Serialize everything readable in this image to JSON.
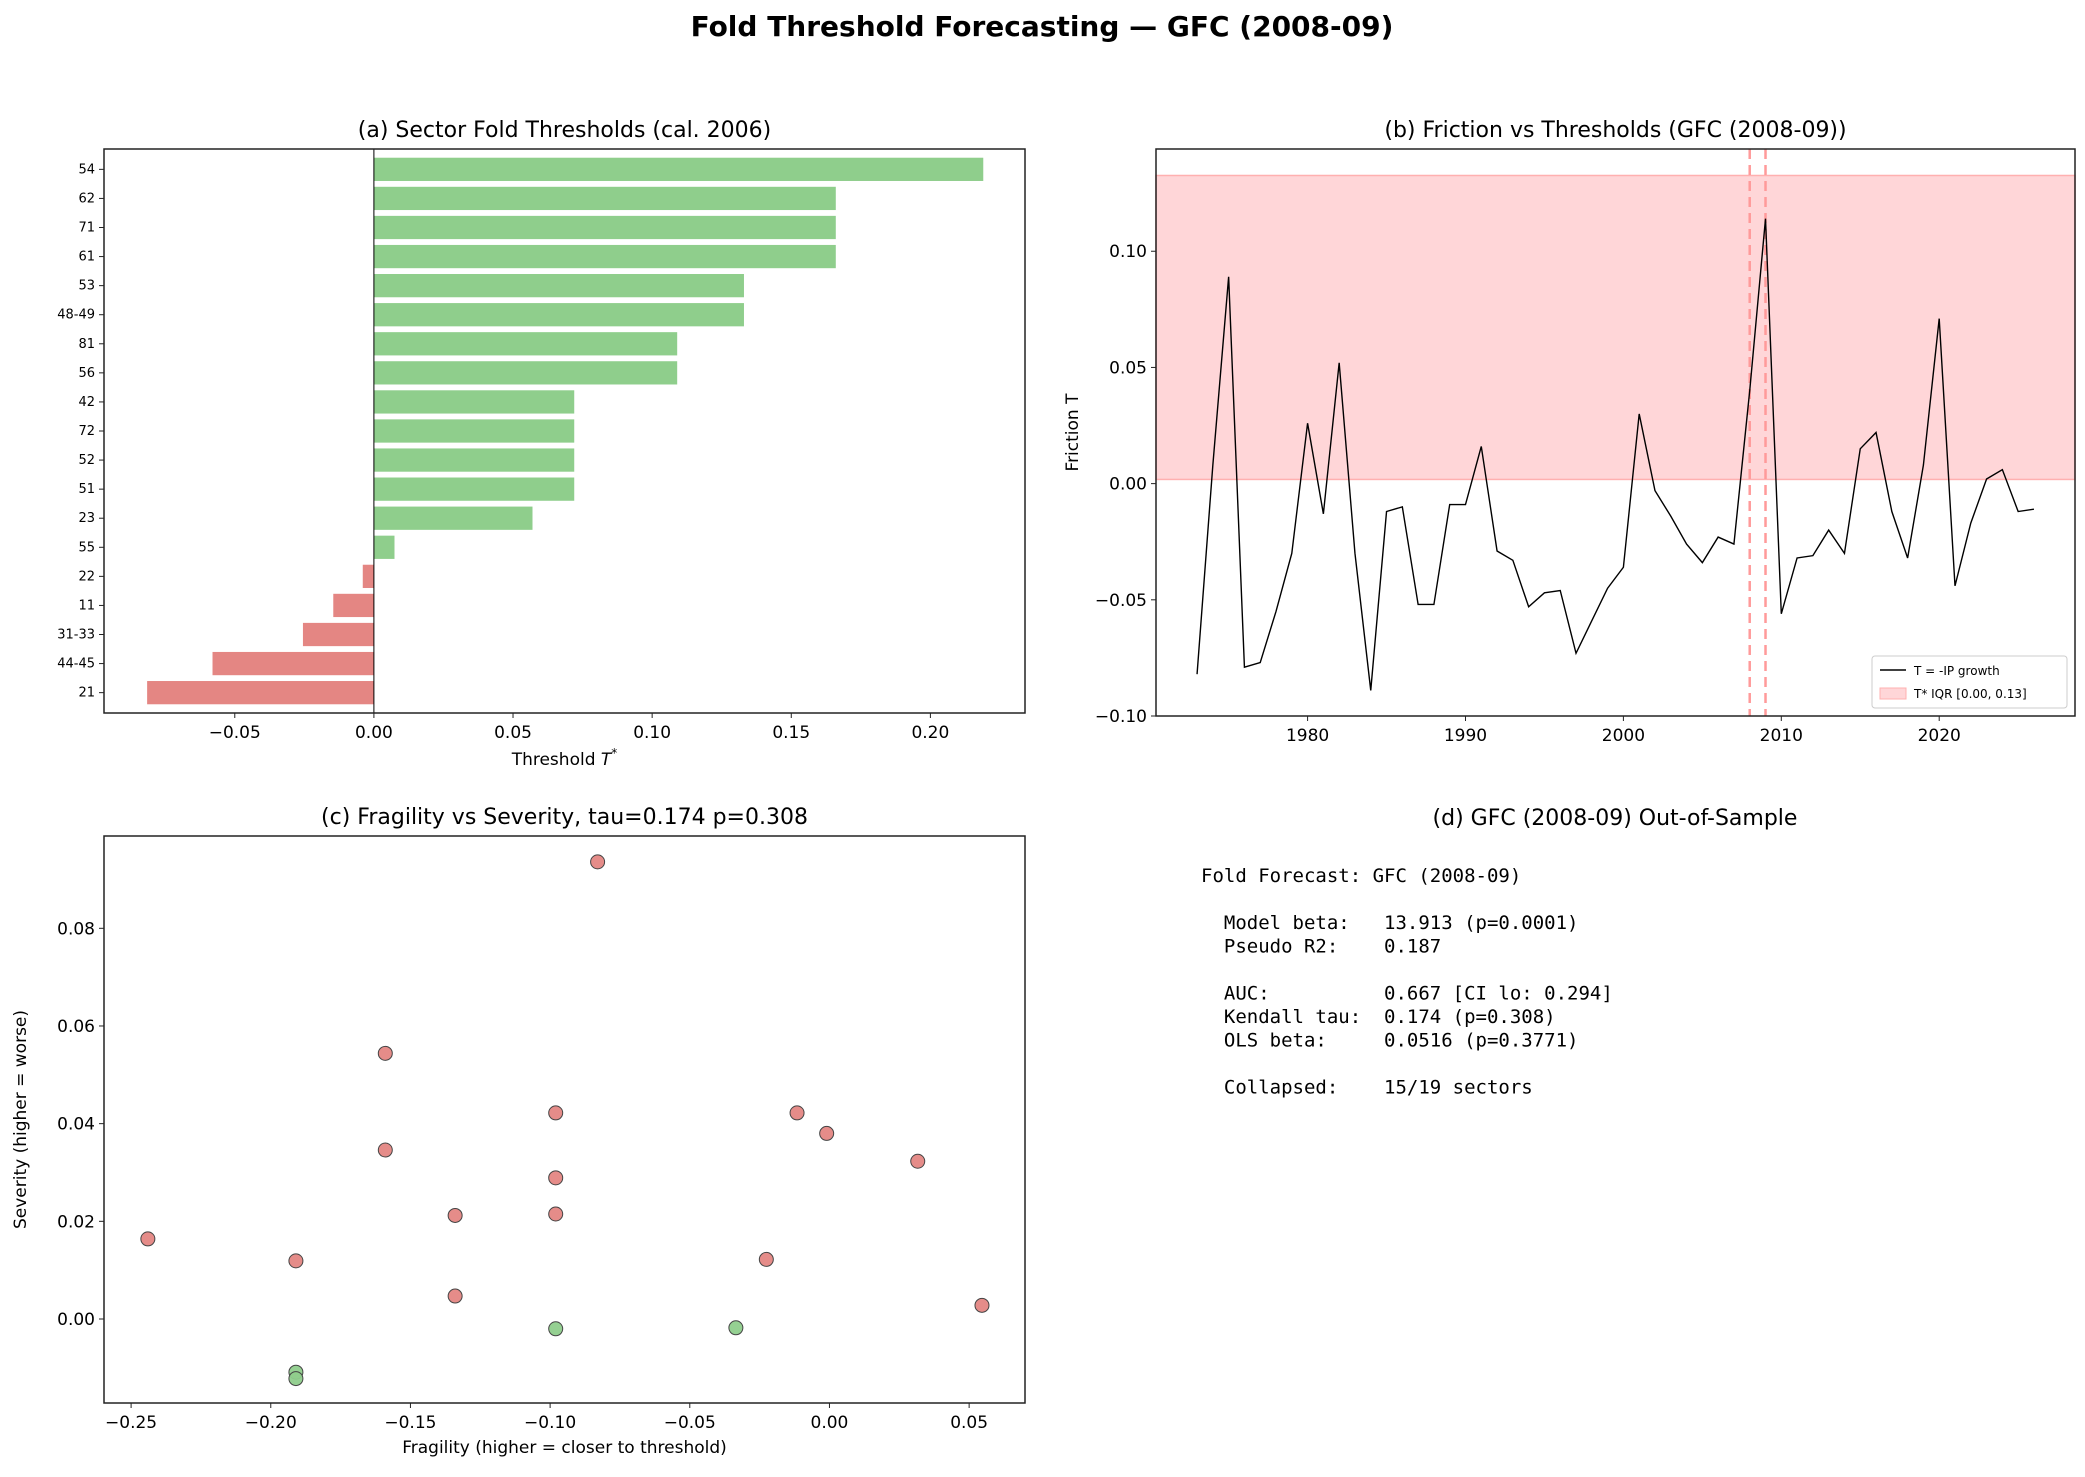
{
  "suptitle": "Fold Threshold Forecasting — GFC (2008-09)",
  "colors": {
    "green": "#8fce8c",
    "red": "#e48683",
    "band": "#ffd6d8",
    "vline": "#ff9a9a",
    "line": "#000000"
  },
  "chart_data": [
    {
      "type": "bar",
      "orientation": "horizontal",
      "title": "(a) Sector Fold Thresholds (cal. 2006)",
      "xlabel": "Threshold T*",
      "categories": [
        "54",
        "62",
        "71",
        "61",
        "53",
        "48-49",
        "81",
        "56",
        "42",
        "72",
        "52",
        "51",
        "23",
        "55",
        "22",
        "11",
        "31-33",
        "44-45",
        "21"
      ],
      "values": [
        0.219,
        0.166,
        0.166,
        0.166,
        0.133,
        0.133,
        0.109,
        0.109,
        0.072,
        0.072,
        0.072,
        0.072,
        0.057,
        0.0074,
        -0.004,
        -0.0146,
        -0.0255,
        -0.058,
        -0.0815
      ],
      "xlim": [
        -0.097,
        0.234
      ],
      "xticks": [
        -0.05,
        0.0,
        0.05,
        0.1,
        0.15,
        0.2
      ],
      "xtick_labels": [
        "−0.05",
        "0.00",
        "0.05",
        "0.10",
        "0.15",
        "0.20"
      ],
      "colors_by_sign": {
        "positive": "green",
        "negative": "red"
      }
    },
    {
      "type": "line",
      "title": "(b) Friction vs Thresholds (GFC (2008-09))",
      "ylabel": "Friction T",
      "x": [
        1973,
        1974,
        1975,
        1976,
        1977,
        1978,
        1979,
        1980,
        1981,
        1982,
        1983,
        1984,
        1985,
        1986,
        1987,
        1988,
        1989,
        1990,
        1991,
        1992,
        1993,
        1994,
        1995,
        1996,
        1997,
        1998,
        1999,
        2000,
        2001,
        2002,
        2003,
        2004,
        2005,
        2006,
        2007,
        2008,
        2009,
        2010,
        2011,
        2012,
        2013,
        2014,
        2015,
        2016,
        2017,
        2018,
        2019,
        2020,
        2021,
        2022,
        2023,
        2024,
        2025,
        2026
      ],
      "series": [
        {
          "name": "T = -IP growth",
          "values": [
            -0.082,
            0.008,
            0.089,
            -0.079,
            -0.077,
            -0.055,
            -0.03,
            0.026,
            -0.013,
            0.052,
            -0.03,
            -0.089,
            -0.012,
            -0.01,
            -0.052,
            -0.052,
            -0.009,
            -0.009,
            0.016,
            -0.029,
            -0.033,
            -0.053,
            -0.047,
            -0.046,
            -0.073,
            -0.059,
            -0.045,
            -0.036,
            0.03,
            -0.003,
            -0.014,
            -0.026,
            -0.034,
            -0.023,
            -0.026,
            0.04,
            0.114,
            -0.056,
            -0.032,
            -0.031,
            -0.02,
            -0.03,
            0.015,
            0.022,
            -0.012,
            -0.032,
            0.008,
            0.071,
            -0.044,
            -0.017,
            0.002,
            0.006,
            -0.012,
            -0.011
          ]
        }
      ],
      "band": {
        "name": "T* IQR [0.00, 0.13]",
        "low": 0.0018,
        "high": 0.1326
      },
      "vlines": [
        2008,
        2009
      ],
      "xlim": [
        1970.4,
        2028.6
      ],
      "ylim": [
        -0.1,
        0.144
      ],
      "xticks": [
        1980,
        1990,
        2000,
        2010,
        2020
      ],
      "xtick_labels": [
        "1980",
        "1990",
        "2000",
        "2010",
        "2020"
      ],
      "yticks": [
        -0.1,
        -0.05,
        0.0,
        0.05,
        0.1
      ],
      "ytick_labels": [
        "−0.10",
        "−0.05",
        "0.00",
        "0.05",
        "0.10"
      ],
      "legend": "bottom-right"
    },
    {
      "type": "scatter",
      "title": "(c) Fragility vs Severity, tau=0.174 p=0.308",
      "xlabel": "Fragility (higher = closer to threshold)",
      "ylabel": "Severity (higher = worse)",
      "points": [
        {
          "x": -0.083,
          "y": 0.0936,
          "c": "red"
        },
        {
          "x": -0.159,
          "y": 0.0544,
          "c": "red"
        },
        {
          "x": -0.098,
          "y": 0.0422,
          "c": "red"
        },
        {
          "x": -0.0116,
          "y": 0.0422,
          "c": "red"
        },
        {
          "x": -0.001,
          "y": 0.038,
          "c": "red"
        },
        {
          "x": -0.159,
          "y": 0.0346,
          "c": "red"
        },
        {
          "x": 0.0316,
          "y": 0.0323,
          "c": "red"
        },
        {
          "x": -0.098,
          "y": 0.0289,
          "c": "red"
        },
        {
          "x": -0.134,
          "y": 0.0212,
          "c": "red"
        },
        {
          "x": -0.098,
          "y": 0.0215,
          "c": "red"
        },
        {
          "x": -0.244,
          "y": 0.0164,
          "c": "red"
        },
        {
          "x": -0.191,
          "y": 0.0119,
          "c": "red"
        },
        {
          "x": -0.0226,
          "y": 0.0122,
          "c": "red"
        },
        {
          "x": -0.134,
          "y": 0.0047,
          "c": "red"
        },
        {
          "x": 0.0546,
          "y": 0.0028,
          "c": "red"
        },
        {
          "x": -0.098,
          "y": -0.002,
          "c": "green"
        },
        {
          "x": -0.0335,
          "y": -0.0018,
          "c": "green"
        },
        {
          "x": -0.191,
          "y": -0.0109,
          "c": "green"
        },
        {
          "x": -0.191,
          "y": -0.0122,
          "c": "green"
        }
      ],
      "xlim": [
        -0.2597,
        0.07
      ],
      "ylim": [
        -0.0172,
        0.0989
      ],
      "xticks": [
        -0.25,
        -0.2,
        -0.15,
        -0.1,
        -0.05,
        0.0,
        0.05
      ],
      "xtick_labels": [
        "−0.25",
        "−0.20",
        "−0.15",
        "−0.10",
        "−0.05",
        "0.00",
        "0.05"
      ],
      "yticks": [
        0.0,
        0.02,
        0.04,
        0.06,
        0.08
      ],
      "ytick_labels": [
        "0.00",
        "0.02",
        "0.04",
        "0.06",
        "0.08"
      ]
    }
  ],
  "panel_d": {
    "title": "(d) GFC (2008-09) Out-of-Sample",
    "lines": [
      "Fold Forecast: GFC (2008-09)",
      "",
      "  Model beta:   13.913 (p=0.0001)",
      "  Pseudo R2:    0.187",
      "",
      "  AUC:          0.667 [CI lo: 0.294]",
      "  Kendall tau:  0.174 (p=0.308)",
      "  OLS beta:     0.0516 (p=0.3771)",
      "",
      "  Collapsed:    15/19 sectors"
    ]
  }
}
